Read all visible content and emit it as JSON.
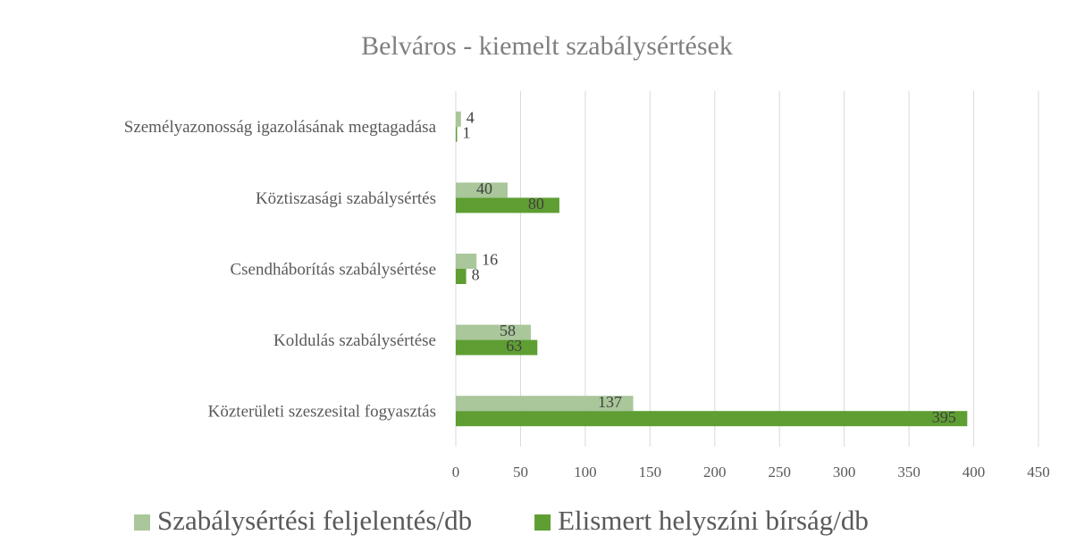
{
  "chart_data": {
    "type": "bar",
    "orientation": "horizontal",
    "title": "Belváros - kiemelt szabálysértések",
    "categories": [
      "Személyazonosság igazolásának megtagadása",
      "Köztiszasági szabálysértés",
      "Csendháborítás szabálysértése",
      "Koldulás szabálysértése",
      "Közterületi szeszesital fogyasztás"
    ],
    "series": [
      {
        "name": "Szabálysértési feljelentés/db",
        "color": "#a9c79a",
        "values": [
          4,
          40,
          16,
          58,
          137
        ]
      },
      {
        "name": "Elismert helyszíni bírság/db",
        "color": "#5e9e32",
        "values": [
          1,
          80,
          8,
          63,
          395
        ]
      }
    ],
    "xlim": [
      0,
      450
    ],
    "xticks": [
      0,
      50,
      100,
      150,
      200,
      250,
      300,
      350,
      400,
      450
    ],
    "grid": true,
    "legend": "bottom"
  }
}
